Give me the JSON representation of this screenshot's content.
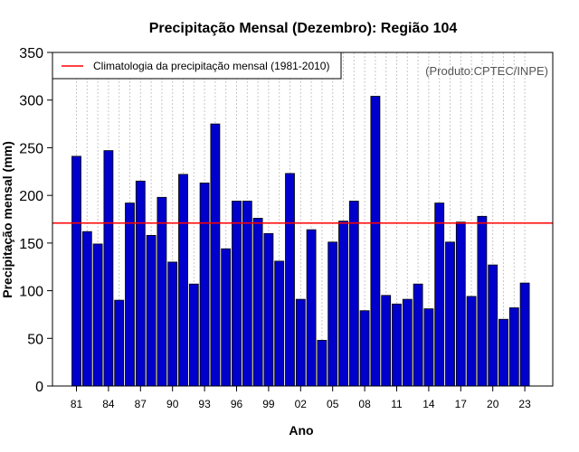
{
  "chart_data": {
    "type": "bar",
    "title": "Precipitação Mensal (Dezembro): Região 104",
    "xlabel": "Ano",
    "ylabel": "Precipitação mensal (mm)",
    "ylim": [
      0,
      350
    ],
    "yticks": [
      0,
      50,
      100,
      150,
      200,
      250,
      300,
      350
    ],
    "years": [
      1981,
      1982,
      1983,
      1984,
      1985,
      1986,
      1987,
      1988,
      1989,
      1990,
      1991,
      1992,
      1993,
      1994,
      1995,
      1996,
      1997,
      1998,
      1999,
      2000,
      2001,
      2002,
      2003,
      2004,
      2005,
      2006,
      2007,
      2008,
      2009,
      2010,
      2011,
      2012,
      2013,
      2014,
      2015,
      2016,
      2017,
      2018,
      2019,
      2020,
      2021,
      2022,
      2023
    ],
    "values": [
      241,
      162,
      149,
      247,
      90,
      192,
      215,
      158,
      198,
      130,
      222,
      107,
      213,
      275,
      144,
      194,
      194,
      176,
      160,
      131,
      223,
      91,
      164,
      48,
      151,
      173,
      194,
      79,
      304,
      95,
      86,
      91,
      107,
      81,
      192,
      151,
      172,
      94,
      178,
      127,
      70,
      82,
      108
    ],
    "xtick_positions": [
      1981,
      1984,
      1987,
      1990,
      1993,
      1996,
      1999,
      2002,
      2005,
      2008,
      2011,
      2014,
      2017,
      2020,
      2023
    ],
    "xtick_labels": [
      "81",
      "84",
      "87",
      "90",
      "93",
      "96",
      "99",
      "02",
      "05",
      "08",
      "11",
      "14",
      "17",
      "20",
      "23"
    ],
    "climatology": {
      "value": 171,
      "label": "Climatologia da precipitação mensal (1981-2010)",
      "color": "#ff0000"
    },
    "bar_color": "#0000cc",
    "annotation": "(Produto:CPTEC/INPE)",
    "grid": "vertical-dotted",
    "legend_position": "top-left"
  }
}
